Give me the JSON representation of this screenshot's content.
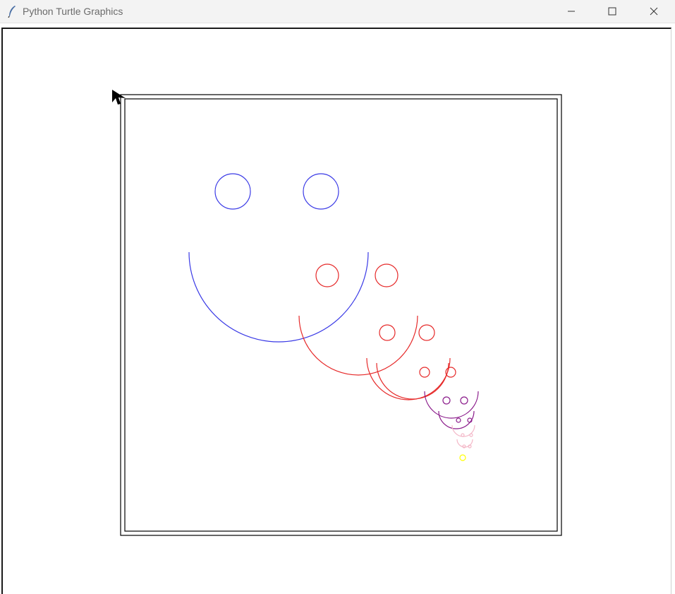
{
  "window": {
    "title": "Python Turtle Graphics",
    "icon": "feather-icon",
    "controls": {
      "minimize_icon": "minimize-icon",
      "maximize_icon": "maximize-icon",
      "close_icon": "close-icon"
    }
  },
  "canvas": {
    "background": "#ffffff",
    "turtle_icon": "turtle-arrow-icon"
  },
  "drawing": {
    "border_color": "#000000",
    "colors": {
      "blue": "#3a3ae6",
      "red": "#e62a2a",
      "purple": "#8a1a8a",
      "pink": "#f4b8c8",
      "yellow": "#ffff00"
    },
    "smiley_colors": [
      "blue",
      "red",
      "red",
      "red",
      "purple",
      "purple",
      "pink",
      "pink",
      "yellow"
    ]
  }
}
